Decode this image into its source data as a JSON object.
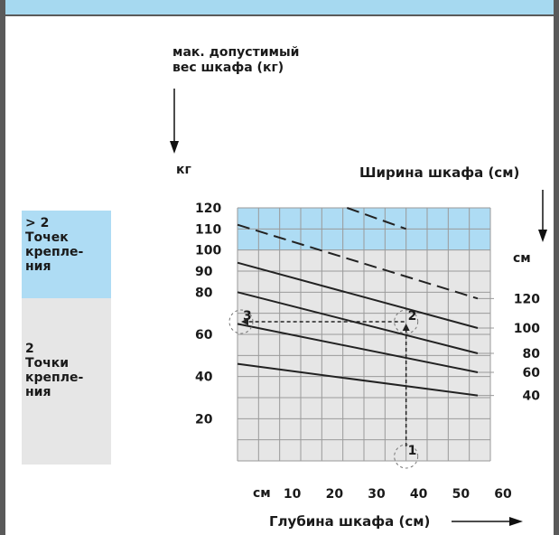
{
  "header": {
    "text": ""
  },
  "sidebar": {
    "top_label": "> 2\nТочек\nкрепле-\nния",
    "bottom_label": "2\nТочки\nкрепле-\nния"
  },
  "labels": {
    "max_weight": "мак. допустимый\nвес шкафа (кг)",
    "kg": "кг",
    "width_title": "Ширина шкафа (см)",
    "cm_right": "см",
    "depth_title": "Глубина шкафа (см)",
    "cm_bottom": "см"
  },
  "colors": {
    "top_region": "#aedcf4",
    "bottom_region": "#e6e6e6",
    "grid": "#9a9a9a",
    "line": "#222222",
    "frame": "#5a5a5a"
  },
  "chart_data": {
    "type": "line",
    "x_ticks": [
      "10",
      "20",
      "30",
      "40",
      "50",
      "60"
    ],
    "y_ticks": [
      "120",
      "110",
      "100",
      "90",
      "80",
      "60",
      "40",
      "20"
    ],
    "width_labels": [
      "120",
      "100",
      "80",
      "60",
      "40"
    ],
    "series": [
      {
        "values": [
          [
            0,
            112
          ],
          [
            57,
            77
          ]
        ],
        "dashed": true
      },
      {
        "values": [
          [
            0,
            94
          ],
          [
            57,
            63
          ]
        ],
        "dashed": false
      },
      {
        "values": [
          [
            0,
            80
          ],
          [
            57,
            51
          ]
        ],
        "dashed": false
      },
      {
        "values": [
          [
            0,
            65
          ],
          [
            57,
            42
          ]
        ],
        "dashed": false
      },
      {
        "values": [
          [
            0,
            46
          ],
          [
            57,
            31
          ]
        ],
        "dashed": false
      }
    ],
    "dashed_top_segment": {
      "values": [
        [
          26,
          120
        ],
        [
          40,
          110
        ]
      ]
    },
    "example_markers": [
      {
        "label": "1",
        "x": 40,
        "y": 0
      },
      {
        "label": "2",
        "x": 40,
        "y": 66
      },
      {
        "label": "3",
        "x": 0,
        "y": 66
      }
    ],
    "region_split_y": 100,
    "xlim": [
      0,
      60
    ],
    "ylim": [
      0,
      120
    ]
  }
}
